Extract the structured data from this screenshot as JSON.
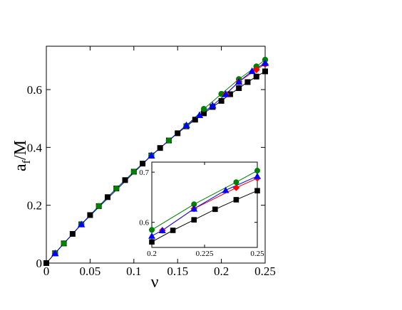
{
  "chart_data": [
    {
      "type": "line",
      "title": "",
      "xlabel": "ν",
      "ylabel_main": "a",
      "ylabel_sub": "f",
      "ylabel_tail": "/M",
      "xlim": [
        0,
        0.25
      ],
      "ylim": [
        0,
        0.75
      ],
      "xticks": [
        0,
        0.05,
        0.1,
        0.15,
        0.2,
        0.25
      ],
      "xtick_labels": [
        "0",
        "0.05",
        "0.1",
        "0.15",
        "0.2",
        "0.25"
      ],
      "yticks": [
        0,
        0.2,
        0.4,
        0.6
      ],
      "ytick_labels": [
        "0",
        "0.2",
        "0.4",
        "0.6"
      ],
      "grid": false,
      "legend": "none",
      "series": [
        {
          "color": "#000000",
          "marker": "square",
          "x": [
            0,
            0.01,
            0.02,
            0.03,
            0.04,
            0.05,
            0.06,
            0.07,
            0.08,
            0.09,
            0.1,
            0.11,
            0.12,
            0.13,
            0.14,
            0.15,
            0.16,
            0.17,
            0.18,
            0.19,
            0.2,
            0.21,
            0.22,
            0.23,
            0.24,
            0.25
          ],
          "y": [
            0,
            0.034,
            0.068,
            0.101,
            0.134,
            0.166,
            0.197,
            0.228,
            0.258,
            0.287,
            0.316,
            0.344,
            0.372,
            0.398,
            0.424,
            0.449,
            0.473,
            0.496,
            0.518,
            0.54,
            0.561,
            0.584,
            0.605,
            0.626,
            0.645,
            0.663
          ]
        },
        {
          "color": "#008000",
          "marker": "circle",
          "x": [
            0.01,
            0.02,
            0.04,
            0.06,
            0.08,
            0.1,
            0.12,
            0.14,
            0.16,
            0.18,
            0.2,
            0.22,
            0.24,
            0.25
          ],
          "y": [
            0.034,
            0.068,
            0.134,
            0.197,
            0.258,
            0.316,
            0.372,
            0.424,
            0.475,
            0.533,
            0.585,
            0.636,
            0.68,
            0.703
          ]
        },
        {
          "color": "#ff0000",
          "marker": "diamond",
          "x": [
            0.205,
            0.22,
            0.24,
            0.25
          ],
          "y": [
            0.584,
            0.627,
            0.669,
            0.688
          ]
        },
        {
          "color": "#0000ff",
          "marker": "triangle",
          "x": [
            0.01,
            0.04,
            0.12,
            0.16,
            0.175,
            0.19,
            0.205,
            0.22,
            0.235,
            0.25
          ],
          "y": [
            0.034,
            0.134,
            0.372,
            0.477,
            0.512,
            0.545,
            0.584,
            0.627,
            0.664,
            0.692
          ]
        }
      ]
    },
    {
      "type": "line",
      "title": "",
      "xlim": [
        0.2,
        0.25
      ],
      "ylim": [
        0.55,
        0.72
      ],
      "xticks": [
        0.2,
        0.225,
        0.25
      ],
      "xtick_labels": [
        "0.2",
        "0.225",
        "0.25"
      ],
      "yticks": [
        0.6,
        0.7
      ],
      "ytick_labels": [
        "0.6",
        "0.7"
      ],
      "grid": false,
      "legend": "none",
      "series": [
        {
          "color": "#000000",
          "marker": "square",
          "x": [
            0.2,
            0.21,
            0.22,
            0.23,
            0.24,
            0.25
          ],
          "y": [
            0.561,
            0.584,
            0.605,
            0.626,
            0.645,
            0.663
          ]
        },
        {
          "color": "#008000",
          "marker": "circle",
          "x": [
            0.2,
            0.22,
            0.24,
            0.25
          ],
          "y": [
            0.585,
            0.636,
            0.68,
            0.703
          ]
        },
        {
          "color": "#ff0000",
          "marker": "diamond",
          "x": [
            0.205,
            0.22,
            0.24,
            0.25
          ],
          "y": [
            0.584,
            0.627,
            0.669,
            0.688
          ]
        },
        {
          "color": "#0000ff",
          "marker": "triangle",
          "x": [
            0.2,
            0.205,
            0.22,
            0.235,
            0.25
          ],
          "y": [
            0.573,
            0.584,
            0.627,
            0.664,
            0.692
          ]
        }
      ]
    }
  ]
}
